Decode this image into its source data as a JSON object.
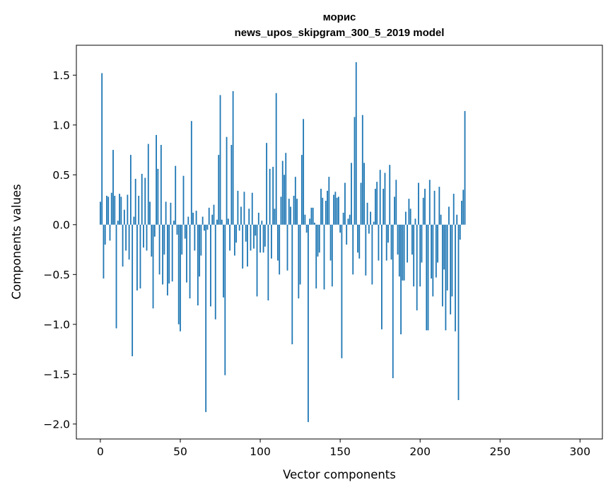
{
  "chart_data": {
    "type": "bar",
    "title_line1": "морис",
    "title_line2": "news_upos_skipgram_300_5_2019 model",
    "xlabel": "Vector components",
    "ylabel": "Components values",
    "xlim": [
      -15,
      314
    ],
    "ylim": [
      -2.15,
      1.8
    ],
    "xticks": [
      0,
      50,
      100,
      150,
      200,
      250,
      300
    ],
    "xtick_labels": [
      "0",
      "50",
      "100",
      "150",
      "200",
      "250",
      "300"
    ],
    "yticks": [
      -2.0,
      -1.5,
      -1.0,
      -0.5,
      0.0,
      0.5,
      1.0,
      1.5
    ],
    "ytick_labels": [
      "−2.0",
      "−1.5",
      "−1.0",
      "−0.5",
      "0.0",
      "0.5",
      "1.0",
      "1.5"
    ],
    "bar_color": "#1f77b4",
    "values": [
      0.23,
      1.52,
      -0.54,
      -0.2,
      0.29,
      0.28,
      -0.16,
      0.32,
      0.75,
      0.29,
      -1.04,
      0.04,
      0.31,
      0.28,
      -0.42,
      0.15,
      -0.26,
      0.3,
      -0.35,
      0.7,
      -1.32,
      0.08,
      0.46,
      -0.66,
      0.29,
      -0.64,
      0.51,
      -0.23,
      0.47,
      -0.26,
      0.81,
      0.23,
      -0.32,
      -0.84,
      -0.12,
      0.9,
      0.56,
      -0.5,
      0.8,
      -0.6,
      -0.3,
      0.23,
      -0.71,
      -0.59,
      0.22,
      -0.57,
      0.04,
      0.59,
      -0.1,
      -1.0,
      -1.07,
      -0.3,
      0.49,
      -0.14,
      -0.58,
      0.08,
      -0.74,
      1.04,
      0.12,
      -0.26,
      0.14,
      -0.81,
      -0.52,
      -0.31,
      0.08,
      -0.06,
      -1.88,
      -0.05,
      0.17,
      -0.82,
      0.1,
      0.2,
      -0.95,
      0.05,
      0.7,
      1.3,
      0.05,
      -0.73,
      -1.51,
      0.88,
      0.06,
      -0.26,
      0.8,
      1.34,
      -0.31,
      -0.18,
      0.34,
      -0.06,
      0.18,
      -0.44,
      0.33,
      -0.17,
      -0.42,
      0.16,
      -0.26,
      0.32,
      -0.24,
      -0.11,
      -0.72,
      0.12,
      -0.28,
      0.04,
      -0.28,
      -0.22,
      0.82,
      -0.76,
      0.56,
      -0.34,
      0.58,
      0.16,
      1.32,
      -0.36,
      -0.5,
      0.28,
      0.64,
      0.5,
      0.72,
      -0.46,
      0.26,
      0.18,
      -1.2,
      0.29,
      0.48,
      0.26,
      -0.74,
      -0.6,
      0.7,
      1.06,
      0.1,
      -0.08,
      -1.98,
      0.06,
      0.17,
      0.17,
      0.02,
      -0.64,
      -0.32,
      -0.28,
      0.36,
      0.27,
      -0.65,
      0.24,
      0.34,
      0.48,
      -0.36,
      -0.62,
      0.3,
      0.33,
      0.27,
      0.28,
      -0.08,
      -1.34,
      0.12,
      0.42,
      -0.2,
      0.06,
      0.1,
      0.62,
      -0.5,
      1.08,
      1.63,
      -0.28,
      -0.34,
      0.42,
      1.1,
      0.62,
      -0.51,
      0.22,
      -0.09,
      0.13,
      -0.6,
      0.03,
      0.36,
      0.43,
      -0.36,
      0.55,
      -1.05,
      0.36,
      0.52,
      -0.36,
      -0.18,
      0.6,
      -0.35,
      -1.54,
      0.28,
      0.45,
      -0.3,
      -0.52,
      -1.1,
      -0.56,
      -0.56,
      0.13,
      -0.38,
      0.26,
      0.16,
      -0.3,
      -0.62,
      0.06,
      -0.86,
      0.42,
      -0.62,
      -0.38,
      0.27,
      0.36,
      -1.06,
      -1.06,
      0.45,
      -0.54,
      -0.72,
      0.34,
      -0.53,
      -0.38,
      0.38,
      0.1,
      -0.82,
      -0.45,
      -1.06,
      -0.66,
      0.18,
      -0.9,
      -0.72,
      0.31,
      -1.07,
      0.1,
      -1.76,
      -0.15,
      0.24,
      0.35,
      1.14
    ]
  }
}
